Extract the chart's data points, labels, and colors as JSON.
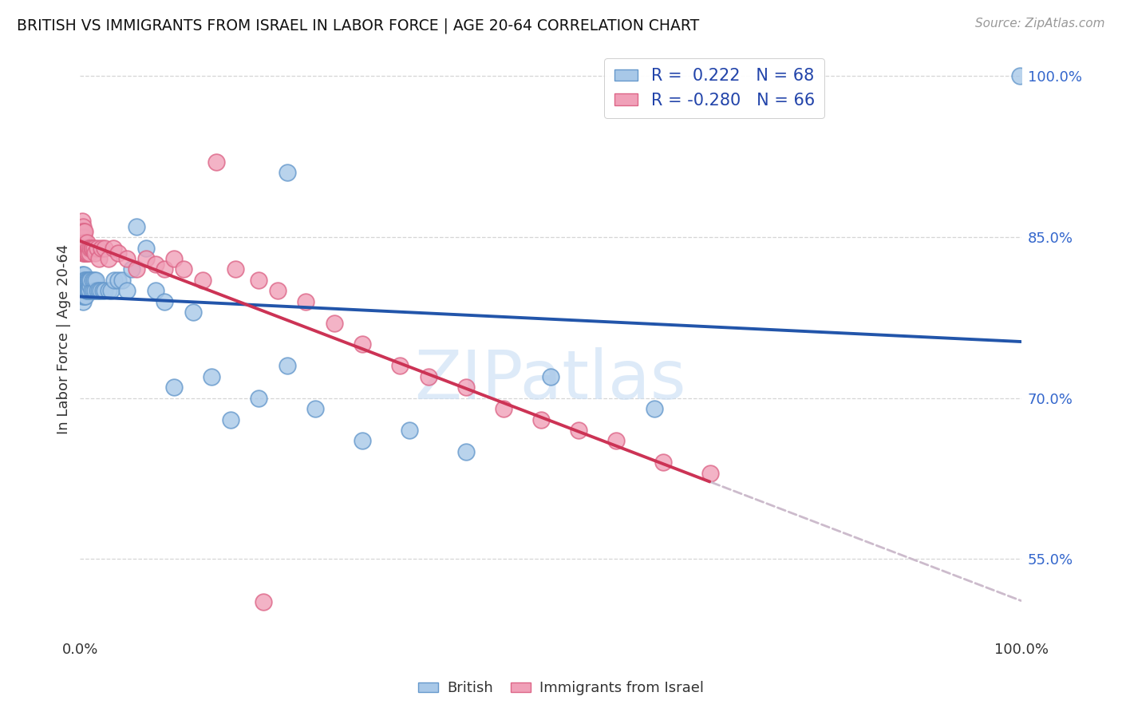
{
  "title": "BRITISH VS IMMIGRANTS FROM ISRAEL IN LABOR FORCE | AGE 20-64 CORRELATION CHART",
  "source": "Source: ZipAtlas.com",
  "ylabel": "In Labor Force | Age 20-64",
  "xlim": [
    0.0,
    1.0
  ],
  "ylim": [
    0.48,
    1.03
  ],
  "yticks": [
    0.55,
    0.7,
    0.85,
    1.0
  ],
  "ytick_labels": [
    "55.0%",
    "70.0%",
    "85.0%",
    "100.0%"
  ],
  "xticks": [
    0.0,
    0.1,
    0.2,
    0.3,
    0.4,
    0.5,
    0.6,
    0.7,
    0.8,
    0.9,
    1.0
  ],
  "xtick_labels": [
    "0.0%",
    "",
    "",
    "",
    "",
    "",
    "",
    "",
    "",
    "",
    "100.0%"
  ],
  "british_color": "#a8c8e8",
  "israel_color": "#f0a0b8",
  "british_edge": "#6699cc",
  "israel_edge": "#dd6688",
  "trend_blue": "#2255aa",
  "trend_pink": "#cc3355",
  "trend_gray_dash": "#ccbbcc",
  "R_british": 0.222,
  "N_british": 68,
  "R_israel": -0.28,
  "N_israel": 66,
  "british_x": [
    0.001,
    0.001,
    0.002,
    0.002,
    0.002,
    0.003,
    0.003,
    0.003,
    0.003,
    0.003,
    0.004,
    0.004,
    0.004,
    0.004,
    0.005,
    0.005,
    0.005,
    0.005,
    0.006,
    0.006,
    0.006,
    0.007,
    0.007,
    0.007,
    0.008,
    0.008,
    0.009,
    0.009,
    0.01,
    0.01,
    0.011,
    0.011,
    0.012,
    0.013,
    0.014,
    0.015,
    0.016,
    0.017,
    0.018,
    0.02,
    0.022,
    0.024,
    0.026,
    0.03,
    0.033,
    0.036,
    0.04,
    0.045,
    0.05,
    0.055,
    0.06,
    0.07,
    0.08,
    0.09,
    0.1,
    0.12,
    0.14,
    0.16,
    0.19,
    0.22,
    0.25,
    0.3,
    0.35,
    0.41,
    0.5,
    0.61,
    0.22,
    0.999
  ],
  "british_y": [
    0.8,
    0.81,
    0.795,
    0.805,
    0.815,
    0.8,
    0.79,
    0.81,
    0.8,
    0.795,
    0.8,
    0.81,
    0.805,
    0.815,
    0.8,
    0.81,
    0.795,
    0.805,
    0.8,
    0.81,
    0.795,
    0.8,
    0.81,
    0.8,
    0.81,
    0.8,
    0.81,
    0.8,
    0.81,
    0.8,
    0.805,
    0.81,
    0.8,
    0.81,
    0.8,
    0.81,
    0.8,
    0.81,
    0.8,
    0.8,
    0.8,
    0.8,
    0.8,
    0.8,
    0.8,
    0.81,
    0.81,
    0.81,
    0.8,
    0.82,
    0.86,
    0.84,
    0.8,
    0.79,
    0.71,
    0.78,
    0.72,
    0.68,
    0.7,
    0.73,
    0.69,
    0.66,
    0.67,
    0.65,
    0.72,
    0.69,
    0.91,
    1.0
  ],
  "israel_x": [
    0.001,
    0.001,
    0.001,
    0.002,
    0.002,
    0.002,
    0.003,
    0.003,
    0.003,
    0.003,
    0.003,
    0.003,
    0.004,
    0.004,
    0.004,
    0.004,
    0.004,
    0.005,
    0.005,
    0.005,
    0.005,
    0.006,
    0.006,
    0.007,
    0.007,
    0.007,
    0.008,
    0.009,
    0.01,
    0.011,
    0.012,
    0.013,
    0.015,
    0.016,
    0.018,
    0.02,
    0.023,
    0.026,
    0.03,
    0.035,
    0.04,
    0.05,
    0.06,
    0.07,
    0.08,
    0.09,
    0.1,
    0.11,
    0.13,
    0.145,
    0.165,
    0.19,
    0.21,
    0.24,
    0.27,
    0.3,
    0.34,
    0.37,
    0.41,
    0.45,
    0.49,
    0.53,
    0.57,
    0.62,
    0.67,
    0.195
  ],
  "israel_y": [
    0.85,
    0.84,
    0.855,
    0.845,
    0.855,
    0.865,
    0.84,
    0.85,
    0.86,
    0.845,
    0.835,
    0.855,
    0.85,
    0.84,
    0.855,
    0.845,
    0.835,
    0.845,
    0.855,
    0.84,
    0.835,
    0.84,
    0.835,
    0.84,
    0.835,
    0.845,
    0.835,
    0.84,
    0.835,
    0.84,
    0.84,
    0.84,
    0.84,
    0.835,
    0.84,
    0.83,
    0.84,
    0.84,
    0.83,
    0.84,
    0.835,
    0.83,
    0.82,
    0.83,
    0.825,
    0.82,
    0.83,
    0.82,
    0.81,
    0.92,
    0.82,
    0.81,
    0.8,
    0.79,
    0.77,
    0.75,
    0.73,
    0.72,
    0.71,
    0.69,
    0.68,
    0.67,
    0.66,
    0.64,
    0.63,
    0.51
  ],
  "watermark_text": "ZIPatlas",
  "background_color": "#ffffff",
  "grid_color": "#cccccc"
}
